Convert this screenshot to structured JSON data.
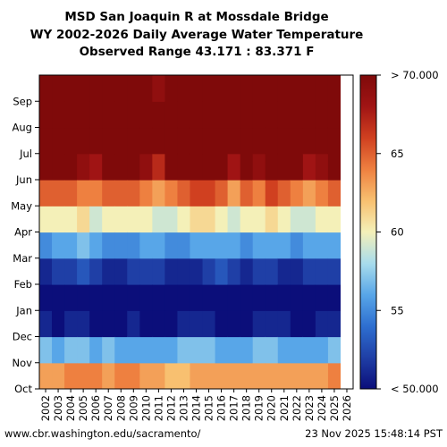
{
  "chart_data": {
    "type": "heatmap",
    "title": "MSD San Joaquin R at Mossdale Bridge",
    "subtitle_1": "WY 2002-2026 Daily Average Water Temperature",
    "subtitle_2": "Observed Range 43.171 : 83.371 F",
    "x": [
      "2002",
      "2003",
      "2004",
      "2005",
      "2006",
      "2007",
      "2008",
      "2009",
      "2010",
      "2011",
      "2012",
      "2013",
      "2014",
      "2015",
      "2016",
      "2017",
      "2018",
      "2019",
      "2020",
      "2021",
      "2022",
      "2023",
      "2024",
      "2025",
      "2026"
    ],
    "y_months": [
      "Oct",
      "Nov",
      "Dec",
      "Jan",
      "Feb",
      "Mar",
      "Apr",
      "May",
      "Jun",
      "Jul",
      "Aug",
      "Sep"
    ],
    "monthly_values": [
      [
        63,
        63,
        64,
        64,
        64,
        63,
        64,
        64,
        63,
        63,
        62,
        62,
        63,
        63,
        63,
        63,
        63,
        63,
        63,
        63,
        63,
        63,
        63,
        64,
        64
      ],
      [
        57,
        56,
        57,
        57,
        56,
        57,
        56,
        56,
        56,
        56,
        56,
        57,
        57,
        57,
        56,
        56,
        56,
        57,
        57,
        56,
        56,
        56,
        56,
        57,
        57
      ],
      [
        51,
        50,
        51,
        51,
        50,
        50,
        50,
        51,
        50,
        50,
        50,
        51,
        51,
        51,
        50,
        50,
        50,
        51,
        51,
        51,
        50,
        50,
        51,
        51,
        null
      ],
      [
        49,
        50,
        50,
        50,
        50,
        49,
        49,
        50,
        50,
        50,
        50,
        49,
        49,
        50,
        50,
        50,
        49,
        50,
        49,
        49,
        50,
        50,
        50,
        50,
        null
      ],
      [
        51,
        52,
        52,
        53,
        52,
        51,
        51,
        52,
        52,
        52,
        51,
        51,
        51,
        52,
        53,
        52,
        51,
        52,
        52,
        51,
        51,
        52,
        52,
        52,
        null
      ],
      [
        55,
        56,
        56,
        57,
        56,
        55,
        55,
        55,
        56,
        56,
        55,
        55,
        56,
        56,
        56,
        56,
        55,
        56,
        56,
        56,
        55,
        56,
        56,
        56,
        null
      ],
      [
        60,
        60,
        60,
        61,
        59,
        60,
        60,
        60,
        60,
        59,
        59,
        60,
        61,
        61,
        60,
        59,
        60,
        60,
        61,
        60,
        59,
        59,
        60,
        60,
        null
      ],
      [
        65,
        65,
        65,
        64,
        64,
        65,
        65,
        65,
        64,
        63,
        64,
        65,
        66,
        66,
        65,
        63,
        65,
        64,
        66,
        65,
        64,
        63,
        64,
        65,
        null
      ],
      [
        71,
        70,
        71,
        69,
        68,
        71,
        71,
        70,
        69,
        67,
        70,
        71,
        72,
        72,
        70,
        68,
        70,
        69,
        71,
        71,
        70,
        68,
        69,
        71,
        null
      ],
      [
        76,
        75,
        76,
        74,
        73,
        76,
        76,
        75,
        74,
        72,
        75,
        76,
        77,
        77,
        75,
        73,
        75,
        74,
        76,
        76,
        75,
        73,
        74,
        76,
        null
      ],
      [
        76,
        75,
        76,
        75,
        74,
        76,
        76,
        75,
        75,
        73,
        75,
        76,
        77,
        77,
        76,
        74,
        76,
        75,
        76,
        76,
        75,
        74,
        75,
        76,
        null
      ],
      [
        72,
        71,
        72,
        71,
        70,
        72,
        72,
        71,
        71,
        69,
        71,
        72,
        73,
        73,
        72,
        70,
        72,
        71,
        72,
        72,
        71,
        70,
        71,
        72,
        null
      ]
    ],
    "value_range": [
      50,
      70
    ],
    "colorbar_ticks": [
      "< 50.000",
      "55",
      "60",
      "65",
      "> 70.000"
    ],
    "colorbar_tick_values": [
      50,
      55,
      60,
      65,
      70
    ],
    "colormap": [
      "#0b0e7a",
      "#1f3fa6",
      "#2e6fd0",
      "#58a6e8",
      "#a8dcec",
      "#f4f0b8",
      "#f8c070",
      "#ee8040",
      "#d04020",
      "#a01414",
      "#7f0a0a"
    ]
  },
  "footer": {
    "url": "www.cbr.washington.edu/sacramento/",
    "timestamp": "23 Nov 2025 15:48:14 PST"
  }
}
